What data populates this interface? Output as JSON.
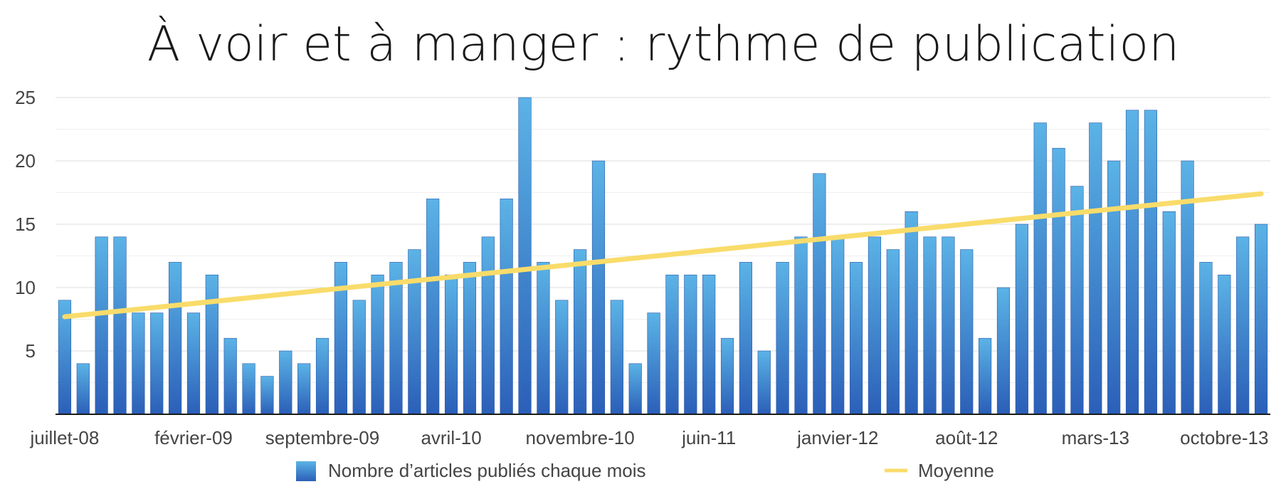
{
  "chart_data": {
    "type": "bar",
    "title": "À voir et à manger : rythme de publication",
    "xlabel": "",
    "ylabel": "",
    "ylim": [
      0,
      25
    ],
    "yticks": [
      5,
      10,
      15,
      20,
      25
    ],
    "grid": true,
    "legend_position": "bottom",
    "categories": [
      "juillet-08",
      "août-08",
      "septembre-08",
      "octobre-08",
      "novembre-08",
      "décembre-08",
      "janvier-09",
      "février-09",
      "mars-09",
      "avril-09",
      "mai-09",
      "juin-09",
      "juillet-09",
      "août-09",
      "septembre-09",
      "octobre-09",
      "novembre-09",
      "décembre-09",
      "janvier-10",
      "février-10",
      "mars-10",
      "avril-10",
      "mai-10",
      "juin-10",
      "juillet-10",
      "août-10",
      "septembre-10",
      "octobre-10",
      "novembre-10",
      "décembre-10",
      "janvier-11",
      "février-11",
      "mars-11",
      "avril-11",
      "mai-11",
      "juin-11",
      "juillet-11",
      "août-11",
      "septembre-11",
      "octobre-11",
      "novembre-11",
      "décembre-11",
      "janvier-12",
      "février-12",
      "mars-12",
      "avril-12",
      "mai-12",
      "juin-12",
      "juillet-12",
      "août-12",
      "septembre-12",
      "octobre-12",
      "novembre-12",
      "décembre-12",
      "janvier-13",
      "février-13",
      "mars-13",
      "avril-13",
      "mai-13",
      "juin-13",
      "juillet-13",
      "août-13",
      "septembre-13",
      "octobre-13",
      "novembre-13",
      "décembre-13"
    ],
    "x_tick_labels": [
      "juillet-08",
      "février-09",
      "septembre-09",
      "avril-10",
      "novembre-10",
      "juin-11",
      "janvier-12",
      "août-12",
      "mars-13",
      "octobre-13"
    ],
    "series": [
      {
        "name": "Nombre d’articles publiés chaque mois",
        "type": "bar",
        "color": "#2f7dd1",
        "values": [
          9,
          4,
          14,
          14,
          8,
          8,
          12,
          8,
          11,
          6,
          4,
          3,
          5,
          4,
          6,
          12,
          9,
          11,
          12,
          13,
          17,
          11,
          12,
          14,
          17,
          25,
          12,
          9,
          13,
          20,
          9,
          4,
          8,
          11,
          11,
          11,
          6,
          12,
          5,
          12,
          14,
          19,
          14,
          12,
          14,
          13,
          16,
          14,
          14,
          13,
          6,
          10,
          15,
          23,
          21,
          18,
          23,
          20,
          24,
          24,
          16,
          20,
          12,
          11,
          14,
          15
        ]
      },
      {
        "name": "Moyenne",
        "type": "line",
        "color": "#f9dc6a",
        "start": 7.7,
        "end": 17.4
      }
    ]
  }
}
